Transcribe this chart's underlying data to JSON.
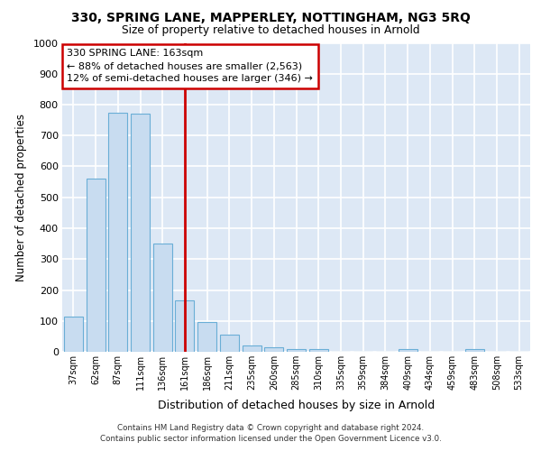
{
  "title1": "330, SPRING LANE, MAPPERLEY, NOTTINGHAM, NG3 5RQ",
  "title2": "Size of property relative to detached houses in Arnold",
  "xlabel": "Distribution of detached houses by size in Arnold",
  "ylabel": "Number of detached properties",
  "categories": [
    "37sqm",
    "62sqm",
    "87sqm",
    "111sqm",
    "136sqm",
    "161sqm",
    "186sqm",
    "211sqm",
    "235sqm",
    "260sqm",
    "285sqm",
    "310sqm",
    "335sqm",
    "359sqm",
    "384sqm",
    "409sqm",
    "434sqm",
    "459sqm",
    "483sqm",
    "508sqm",
    "533sqm"
  ],
  "values": [
    113,
    560,
    775,
    770,
    350,
    165,
    97,
    55,
    20,
    15,
    10,
    8,
    0,
    0,
    0,
    10,
    0,
    0,
    10,
    0,
    0
  ],
  "bar_color": "#c8dcf0",
  "bar_edge_color": "#6aaed6",
  "vline_color": "#cc0000",
  "vline_index": 5,
  "annotation_text": "330 SPRING LANE: 163sqm\n← 88% of detached houses are smaller (2,563)\n12% of semi-detached houses are larger (346) →",
  "ylim": [
    0,
    1000
  ],
  "yticks": [
    0,
    100,
    200,
    300,
    400,
    500,
    600,
    700,
    800,
    900,
    1000
  ],
  "bg_color": "#dde8f5",
  "grid_color": "#ffffff",
  "footer_line1": "Contains HM Land Registry data © Crown copyright and database right 2024.",
  "footer_line2": "Contains public sector information licensed under the Open Government Licence v3.0."
}
